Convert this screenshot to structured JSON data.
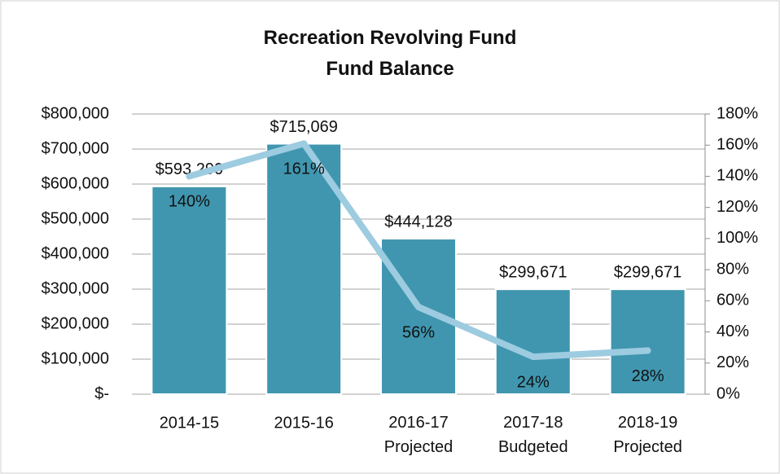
{
  "chart_data": {
    "type": "bar",
    "title": "Recreation Revolving Fund\nFund Balance",
    "categories": [
      "2014-15",
      "2015-16",
      "2016-17\nProjected",
      "2017-18\nBudgeted",
      "2018-19\nProjected"
    ],
    "series": [
      {
        "type": "bar",
        "color": "#4096af",
        "values": [
          593290,
          715069,
          444128,
          299671,
          299671
        ],
        "value_labels": [
          "$593,290",
          "$715,069",
          "$444,128",
          "$299,671",
          "$299,671"
        ]
      },
      {
        "type": "line",
        "axis": "y2",
        "color": "#9dcbe0",
        "values": [
          140,
          161,
          56,
          24,
          28
        ],
        "value_labels": [
          "140%",
          "161%",
          "56%",
          "24%",
          "28%"
        ]
      }
    ],
    "ylim": [
      0,
      800000
    ],
    "yticks": [
      {
        "value": 0,
        "label": "$-"
      },
      {
        "value": 100000,
        "label": "$100,000"
      },
      {
        "value": 200000,
        "label": "$200,000"
      },
      {
        "value": 300000,
        "label": "$300,000"
      },
      {
        "value": 400000,
        "label": "$400,000"
      },
      {
        "value": 500000,
        "label": "$500,000"
      },
      {
        "value": 600000,
        "label": "$600,000"
      },
      {
        "value": 700000,
        "label": "$700,000"
      },
      {
        "value": 800000,
        "label": "$800,000"
      }
    ],
    "y2lim": [
      0,
      180
    ],
    "y2ticks": [
      {
        "value": 0,
        "label": "0%"
      },
      {
        "value": 20,
        "label": "20%"
      },
      {
        "value": 40,
        "label": "40%"
      },
      {
        "value": 60,
        "label": "60%"
      },
      {
        "value": 80,
        "label": "80%"
      },
      {
        "value": 100,
        "label": "100%"
      },
      {
        "value": 120,
        "label": "120%"
      },
      {
        "value": 140,
        "label": "140%"
      },
      {
        "value": 160,
        "label": "160%"
      },
      {
        "value": 180,
        "label": "180%"
      }
    ],
    "grid": true
  }
}
